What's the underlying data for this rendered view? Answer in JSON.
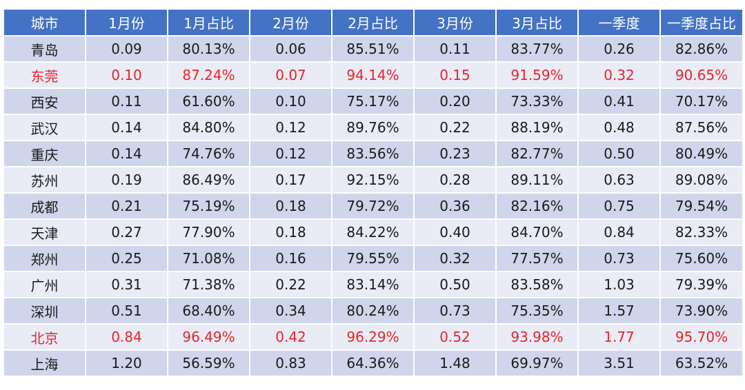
{
  "table": {
    "headers": [
      "城市",
      "1月份",
      "1月占比",
      "2月份",
      "2月占比",
      "3月份",
      "3月占比",
      "一季度",
      "一季度占比"
    ],
    "rows": [
      {
        "cells": [
          "青岛",
          "0.09",
          "80.13%",
          "0.06",
          "85.51%",
          "0.11",
          "83.77%",
          "0.26",
          "82.86%"
        ],
        "highlight": false
      },
      {
        "cells": [
          "东莞",
          "0.10",
          "87.24%",
          "0.07",
          "94.14%",
          "0.15",
          "91.59%",
          "0.32",
          "90.65%"
        ],
        "highlight": true
      },
      {
        "cells": [
          "西安",
          "0.11",
          "61.60%",
          "0.10",
          "75.17%",
          "0.20",
          "73.33%",
          "0.41",
          "70.17%"
        ],
        "highlight": false
      },
      {
        "cells": [
          "武汉",
          "0.14",
          "84.80%",
          "0.12",
          "89.76%",
          "0.22",
          "88.19%",
          "0.48",
          "87.56%"
        ],
        "highlight": false
      },
      {
        "cells": [
          "重庆",
          "0.14",
          "74.76%",
          "0.12",
          "83.56%",
          "0.23",
          "82.77%",
          "0.50",
          "80.49%"
        ],
        "highlight": false
      },
      {
        "cells": [
          "苏州",
          "0.19",
          "86.49%",
          "0.17",
          "92.15%",
          "0.28",
          "89.11%",
          "0.63",
          "89.08%"
        ],
        "highlight": false
      },
      {
        "cells": [
          "成都",
          "0.21",
          "75.19%",
          "0.18",
          "79.72%",
          "0.36",
          "82.16%",
          "0.75",
          "79.54%"
        ],
        "highlight": false
      },
      {
        "cells": [
          "天津",
          "0.27",
          "77.90%",
          "0.18",
          "84.22%",
          "0.40",
          "84.70%",
          "0.84",
          "82.33%"
        ],
        "highlight": false
      },
      {
        "cells": [
          "郑州",
          "0.25",
          "71.08%",
          "0.16",
          "79.55%",
          "0.32",
          "77.57%",
          "0.73",
          "75.60%"
        ],
        "highlight": false
      },
      {
        "cells": [
          "广州",
          "0.31",
          "71.38%",
          "0.22",
          "83.14%",
          "0.50",
          "83.58%",
          "1.03",
          "79.39%"
        ],
        "highlight": false
      },
      {
        "cells": [
          "深圳",
          "0.51",
          "68.40%",
          "0.34",
          "80.24%",
          "0.73",
          "75.35%",
          "1.57",
          "73.90%"
        ],
        "highlight": false
      },
      {
        "cells": [
          "北京",
          "0.84",
          "96.49%",
          "0.42",
          "96.29%",
          "0.52",
          "93.98%",
          "1.77",
          "95.70%"
        ],
        "highlight": true
      },
      {
        "cells": [
          "上海",
          "1.20",
          "56.59%",
          "0.83",
          "64.36%",
          "1.48",
          "69.97%",
          "3.51",
          "63.52%"
        ],
        "highlight": false
      }
    ]
  },
  "colors": {
    "header_bg": "#4472c4",
    "row_odd": "#cfd5ea",
    "row_even": "#e9ebf5",
    "highlight_text": "#e8242b"
  }
}
